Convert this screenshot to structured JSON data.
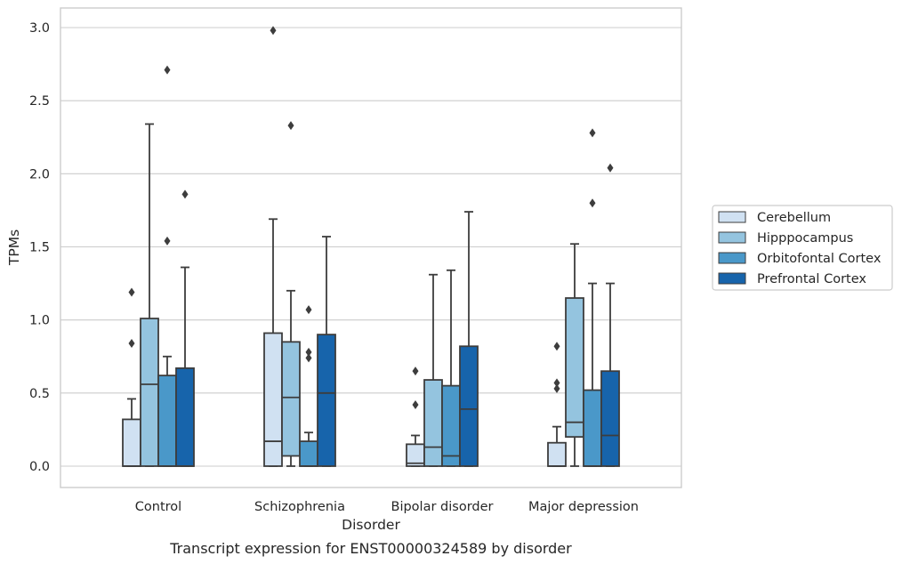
{
  "chart_data": {
    "type": "box",
    "title": "",
    "caption": "Transcript expression for ENST00000324589 by disorder",
    "xlabel": "Disorder",
    "ylabel": "TPMs",
    "ylim": [
      -0.14,
      3.14
    ],
    "yticks": [
      0.0,
      0.5,
      1.0,
      1.5,
      2.0,
      2.5,
      3.0
    ],
    "ytick_labels": [
      "0.0",
      "0.5",
      "1.0",
      "1.5",
      "2.0",
      "2.5",
      "3.0"
    ],
    "grid": "horizontal",
    "legend_position": "right",
    "categories": [
      "Control",
      "Schizophrenia",
      "Bipolar disorder",
      "Major depression"
    ],
    "series": [
      {
        "name": "Cerebellum",
        "color": "#d0e1f2",
        "boxes": [
          {
            "whislo": 0.0,
            "q1": 0.0,
            "med": 0.0,
            "q3": 0.32,
            "whishi": 0.46,
            "fliers": [
              0.84,
              1.19
            ]
          },
          {
            "whislo": 0.0,
            "q1": 0.0,
            "med": 0.17,
            "q3": 0.91,
            "whishi": 1.69,
            "fliers": [
              2.98
            ]
          },
          {
            "whislo": 0.0,
            "q1": 0.0,
            "med": 0.02,
            "q3": 0.15,
            "whishi": 0.21,
            "fliers": [
              0.42,
              0.65
            ]
          },
          {
            "whislo": 0.0,
            "q1": 0.0,
            "med": 0.0,
            "q3": 0.16,
            "whishi": 0.27,
            "fliers": [
              0.53,
              0.57,
              0.82
            ]
          }
        ]
      },
      {
        "name": "Hipppocampus",
        "color": "#94c4df",
        "boxes": [
          {
            "whislo": 0.0,
            "q1": 0.0,
            "med": 0.56,
            "q3": 1.01,
            "whishi": 2.34,
            "fliers": []
          },
          {
            "whislo": 0.0,
            "q1": 0.07,
            "med": 0.47,
            "q3": 0.85,
            "whishi": 1.2,
            "fliers": [
              2.33
            ]
          },
          {
            "whislo": 0.0,
            "q1": 0.0,
            "med": 0.13,
            "q3": 0.59,
            "whishi": 1.31,
            "fliers": []
          },
          {
            "whislo": 0.0,
            "q1": 0.2,
            "med": 0.3,
            "q3": 1.15,
            "whishi": 1.52,
            "fliers": []
          }
        ]
      },
      {
        "name": "Orbitofontal Cortex",
        "color": "#4a98c9",
        "boxes": [
          {
            "whislo": 0.0,
            "q1": 0.0,
            "med": 0.0,
            "q3": 0.62,
            "whishi": 0.75,
            "fliers": [
              1.54,
              2.71
            ]
          },
          {
            "whislo": 0.0,
            "q1": 0.0,
            "med": 0.0,
            "q3": 0.17,
            "whishi": 0.23,
            "fliers": [
              0.74,
              0.78,
              1.07
            ]
          },
          {
            "whislo": 0.0,
            "q1": 0.0,
            "med": 0.07,
            "q3": 0.55,
            "whishi": 1.34,
            "fliers": []
          },
          {
            "whislo": 0.0,
            "q1": 0.0,
            "med": 0.0,
            "q3": 0.52,
            "whishi": 1.25,
            "fliers": [
              1.8,
              2.28
            ]
          }
        ]
      },
      {
        "name": "Prefrontal Cortex",
        "color": "#1764ab",
        "boxes": [
          {
            "whislo": 0.0,
            "q1": 0.0,
            "med": 0.0,
            "q3": 0.67,
            "whishi": 1.36,
            "fliers": [
              1.86
            ]
          },
          {
            "whislo": 0.0,
            "q1": 0.0,
            "med": 0.5,
            "q3": 0.9,
            "whishi": 1.57,
            "fliers": []
          },
          {
            "whislo": 0.0,
            "q1": 0.0,
            "med": 0.39,
            "q3": 0.82,
            "whishi": 1.74,
            "fliers": []
          },
          {
            "whislo": 0.0,
            "q1": 0.0,
            "med": 0.21,
            "q3": 0.65,
            "whishi": 1.25,
            "fliers": [
              2.04
            ]
          }
        ]
      }
    ]
  }
}
